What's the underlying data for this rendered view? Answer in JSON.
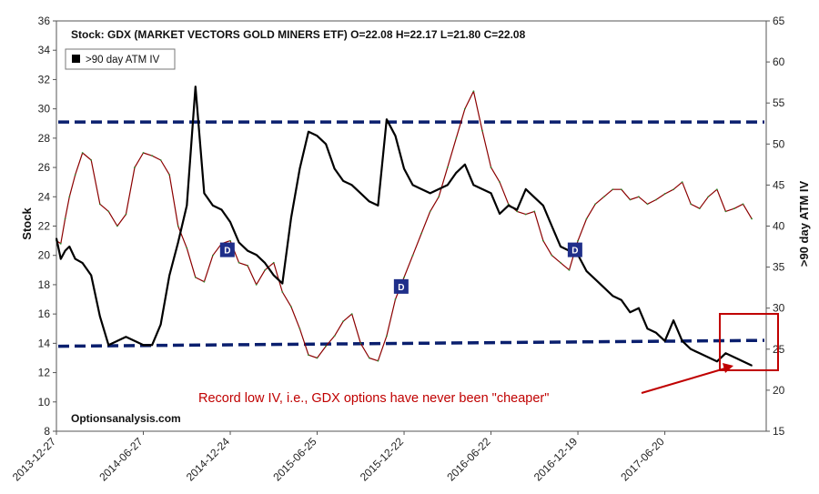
{
  "chart_data": {
    "type": "line",
    "title": "Stock: GDX (MARKET VECTORS GOLD MINERS ETF) O=22.08  H=22.17  L=21.80  C=22.08",
    "brand": "Optionsanalysis.com",
    "ylabel_left": "Stock",
    "ylabel_right": ">90 day ATM IV",
    "legend": [
      ">90 day ATM IV"
    ],
    "ylim_left": [
      8,
      36
    ],
    "yticks_left": [
      "8",
      "10",
      "12",
      "14",
      "16",
      "18",
      "20",
      "22",
      "24",
      "26",
      "28",
      "30",
      "32",
      "34",
      "36"
    ],
    "ylim_right": [
      15,
      65
    ],
    "yticks_right": [
      "15",
      "20",
      "25",
      "30",
      "35",
      "40",
      "45",
      "50",
      "55",
      "60",
      "65"
    ],
    "x_labels": [
      "2013-12-27",
      "2014-06-27",
      "2014-12-24",
      "2015-06-25",
      "2015-12-22",
      "2016-06-22",
      "2016-12-19",
      "2017-06-20"
    ],
    "grid": false,
    "legend_position": "top-left",
    "series": [
      {
        "name": "Stock",
        "axis": "left",
        "color": "#8b0000",
        "x": [
          0,
          0.3,
          0.6,
          0.9,
          1.3,
          1.8,
          2.4,
          3,
          3.6,
          4.2,
          4.8,
          5.4,
          6,
          6.6,
          7.2,
          7.8,
          8.4,
          9,
          9.6,
          10.2,
          10.8,
          11.4,
          12,
          12.6,
          13.2,
          13.8,
          14.4,
          15,
          15.6,
          16.2,
          16.8,
          17.4,
          18,
          18.6,
          19.2,
          19.8,
          20.4,
          21,
          21.6,
          22.2,
          22.8,
          23.4,
          24,
          24.6,
          25.2,
          25.8,
          26.4,
          27,
          27.6,
          28.2,
          28.8,
          29.4,
          30,
          30.6,
          31.2,
          31.8,
          32.4,
          33,
          33.6,
          34.2,
          34.8,
          35.4,
          36,
          36.6,
          37.2,
          37.8,
          38.4,
          39,
          39.6,
          40.2,
          40.8,
          41.4,
          42,
          42.6,
          43.2,
          43.8,
          44.4,
          45,
          45.6,
          46.2,
          46.8,
          47.4,
          48
        ],
        "values": [
          21.0,
          20.8,
          22.5,
          24.0,
          25.5,
          27.0,
          26.5,
          23.5,
          23.0,
          22.0,
          22.8,
          26.0,
          27.0,
          26.8,
          26.5,
          25.5,
          22.0,
          20.5,
          18.5,
          18.2,
          20.0,
          20.8,
          21.0,
          19.5,
          19.3,
          18.0,
          19.0,
          19.5,
          17.5,
          16.5,
          15.0,
          13.2,
          13.0,
          13.8,
          14.5,
          15.5,
          16.0,
          14.0,
          13.0,
          12.8,
          14.5,
          17.0,
          18.5,
          20.0,
          21.5,
          23.0,
          24.0,
          26.0,
          28.0,
          30.0,
          31.2,
          28.5,
          26.0,
          25.0,
          23.5,
          23.0,
          22.8,
          23.0,
          21.0,
          20.0,
          19.5,
          19.0,
          21.0,
          22.5,
          23.5,
          24.0,
          24.5,
          24.5,
          23.8,
          24.0,
          23.5,
          23.8,
          24.2,
          24.5,
          25.0,
          23.5,
          23.2,
          24.0,
          24.5,
          23.0,
          23.2,
          23.5,
          22.5
        ],
        "note": "x in months since 2013-12-27"
      },
      {
        "name": ">90 day ATM IV",
        "axis": "right",
        "color": "#000000",
        "x": [
          0,
          0.3,
          0.6,
          0.9,
          1.3,
          1.8,
          2.4,
          3,
          3.6,
          4.2,
          4.8,
          5.4,
          6,
          6.6,
          7.2,
          7.8,
          8.4,
          9,
          9.6,
          10.2,
          10.8,
          11.4,
          12,
          12.6,
          13.2,
          13.8,
          14.4,
          15,
          15.6,
          16.2,
          16.8,
          17.4,
          18,
          18.6,
          19.2,
          19.8,
          20.4,
          21,
          21.6,
          22.2,
          22.8,
          23.4,
          24,
          24.6,
          25.2,
          25.8,
          26.4,
          27,
          27.6,
          28.2,
          28.8,
          29.4,
          30,
          30.6,
          31.2,
          31.8,
          32.4,
          33,
          33.6,
          34.2,
          34.8,
          35.4,
          36,
          36.6,
          37.2,
          37.8,
          38.4,
          39,
          39.6,
          40.2,
          40.8,
          41.4,
          42,
          42.6,
          43.2,
          43.8,
          44.4,
          45,
          45.6,
          46.2,
          46.8,
          47.4,
          48
        ],
        "values": [
          38.5,
          36.0,
          37.0,
          37.5,
          36.0,
          35.5,
          34.0,
          29.0,
          25.5,
          26.0,
          26.5,
          26.0,
          25.5,
          25.5,
          28.0,
          34.0,
          38.0,
          42.5,
          57.0,
          44.0,
          42.5,
          42.0,
          40.5,
          38.0,
          37.0,
          36.5,
          35.5,
          34.0,
          33.0,
          41.0,
          47.0,
          51.5,
          51.0,
          50.0,
          47.0,
          45.5,
          45.0,
          44.0,
          43.0,
          42.5,
          53.0,
          51.0,
          47.0,
          45.0,
          44.5,
          44.0,
          44.5,
          45.0,
          46.5,
          47.5,
          45.0,
          44.5,
          44.0,
          41.5,
          42.5,
          42.0,
          44.5,
          43.5,
          42.5,
          40.0,
          37.5,
          37.0,
          36.5,
          34.5,
          33.5,
          32.5,
          31.5,
          31.0,
          29.5,
          30.0,
          27.5,
          27.0,
          26.0,
          28.5,
          26.0,
          25.0,
          24.5,
          24.0,
          23.5,
          24.5,
          24.0,
          23.5,
          23.0
        ],
        "note": "x in months since 2013-12-27"
      }
    ],
    "reference_lines": [
      {
        "axis": "left",
        "value": 29.1,
        "style": "dashed",
        "color": "#0a1f6e"
      },
      {
        "axis": "left",
        "value": 13.8,
        "value_end": 14.2,
        "style": "dashed",
        "color": "#0a1f6e"
      }
    ],
    "event_markers": [
      {
        "label": "D",
        "at_x": 11.8
      },
      {
        "label": "D",
        "at_x": 23.8
      },
      {
        "label": "D",
        "at_x": 35.8
      }
    ],
    "annotation": "Record low IV, i.e., GDX options have never been \"cheaper\""
  }
}
